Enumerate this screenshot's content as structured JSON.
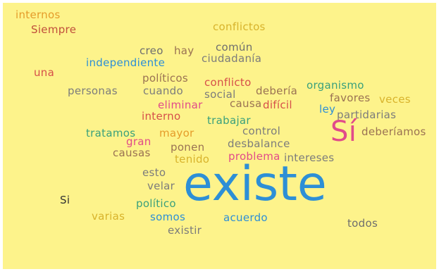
{
  "background": "#fdf38b",
  "words": [
    {
      "text": "internos",
      "color": "#e59c2a"
    },
    {
      "text": "Siempre",
      "color": "#c0503c"
    },
    {
      "text": "conflictos",
      "color": "#d8b32c"
    },
    {
      "text": "una",
      "color": "#d64f4a"
    },
    {
      "text": "creo",
      "color": "#6e6e6e"
    },
    {
      "text": "hay",
      "color": "#9a7253"
    },
    {
      "text": "común",
      "color": "#6e6e6e"
    },
    {
      "text": "independiente",
      "color": "#2d8fd6"
    },
    {
      "text": "ciudadanía",
      "color": "#7c7c7c"
    },
    {
      "text": "políticos",
      "color": "#9a7253"
    },
    {
      "text": "conflicto",
      "color": "#d64f4a"
    },
    {
      "text": "organismo",
      "color": "#3aa07c"
    },
    {
      "text": "personas",
      "color": "#7c7c7c"
    },
    {
      "text": "cuando",
      "color": "#7c7c7c"
    },
    {
      "text": "social",
      "color": "#7c7c7c"
    },
    {
      "text": "debería",
      "color": "#9a7253"
    },
    {
      "text": "favores",
      "color": "#9a7253"
    },
    {
      "text": "veces",
      "color": "#d8b32c"
    },
    {
      "text": "eliminar",
      "color": "#e14b8a"
    },
    {
      "text": "causa",
      "color": "#9a7253"
    },
    {
      "text": "difícil",
      "color": "#d64f4a"
    },
    {
      "text": "ley",
      "color": "#2d8fd6"
    },
    {
      "text": "partidarias",
      "color": "#7c7c7c"
    },
    {
      "text": "interno",
      "color": "#d64f4a"
    },
    {
      "text": "trabajar",
      "color": "#3aa07c"
    },
    {
      "text": "Sí",
      "color": "#e14b8a"
    },
    {
      "text": "deberíamos",
      "color": "#9a7253"
    },
    {
      "text": "tratamos",
      "color": "#3aa07c"
    },
    {
      "text": "mayor",
      "color": "#e59c2a"
    },
    {
      "text": "control",
      "color": "#7c7c7c"
    },
    {
      "text": "gran",
      "color": "#e14b8a"
    },
    {
      "text": "desbalance",
      "color": "#7c7c7c"
    },
    {
      "text": "ponen",
      "color": "#9a7253"
    },
    {
      "text": "causas",
      "color": "#9a7253"
    },
    {
      "text": "tenido",
      "color": "#d8b32c"
    },
    {
      "text": "problema",
      "color": "#e14b8a"
    },
    {
      "text": "intereses",
      "color": "#7c7c7c"
    },
    {
      "text": "esto",
      "color": "#7c7c7c"
    },
    {
      "text": "velar",
      "color": "#7c7c7c"
    },
    {
      "text": "existe",
      "color": "#2d8fd6"
    },
    {
      "text": "Si",
      "color": "#333333"
    },
    {
      "text": "político",
      "color": "#3aa07c"
    },
    {
      "text": "varias",
      "color": "#d8b32c"
    },
    {
      "text": "somos",
      "color": "#2d8fd6"
    },
    {
      "text": "acuerdo",
      "color": "#2d8fd6"
    },
    {
      "text": "todos",
      "color": "#6e6e6e"
    },
    {
      "text": "existir",
      "color": "#7c7c7c"
    }
  ]
}
